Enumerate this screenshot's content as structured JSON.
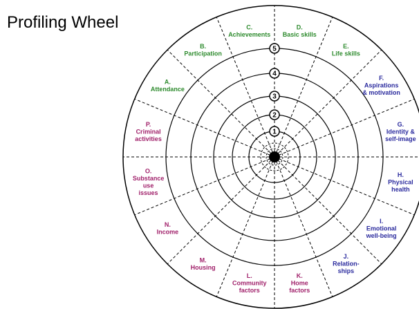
{
  "title": "Profiling Wheel",
  "rings": [
    "1",
    "2",
    "3",
    "4",
    "5"
  ],
  "segments": [
    {
      "letter": "A.",
      "lines": [
        "Attendance"
      ],
      "color": "#2e8b2e"
    },
    {
      "letter": "B.",
      "lines": [
        "Participation"
      ],
      "color": "#2e8b2e"
    },
    {
      "letter": "C.",
      "lines": [
        "Achievements"
      ],
      "color": "#2e8b2e"
    },
    {
      "letter": "D.",
      "lines": [
        "Basic skills"
      ],
      "color": "#2e8b2e"
    },
    {
      "letter": "E.",
      "lines": [
        "Life skills"
      ],
      "color": "#2e8b2e"
    },
    {
      "letter": "F.",
      "lines": [
        "Aspirations",
        "& motivation"
      ],
      "color": "#2b2b9e"
    },
    {
      "letter": "G.",
      "lines": [
        "Identity &",
        "self-image"
      ],
      "color": "#2b2b9e"
    },
    {
      "letter": "H.",
      "lines": [
        "Physical",
        "health"
      ],
      "color": "#2b2b9e"
    },
    {
      "letter": "I.",
      "lines": [
        "Emotional",
        "well-being"
      ],
      "color": "#2b2b9e"
    },
    {
      "letter": "J.",
      "lines": [
        "Relation-",
        "ships"
      ],
      "color": "#2b2b9e"
    },
    {
      "letter": "K.",
      "lines": [
        "Home",
        "factors"
      ],
      "color": "#a0206a"
    },
    {
      "letter": "L.",
      "lines": [
        "Community",
        "factors"
      ],
      "color": "#a0206a"
    },
    {
      "letter": "M.",
      "lines": [
        "Housing"
      ],
      "color": "#a0206a"
    },
    {
      "letter": "N.",
      "lines": [
        "Income"
      ],
      "color": "#a0206a"
    },
    {
      "letter": "O.",
      "lines": [
        "Substance",
        "use",
        "issues"
      ],
      "color": "#a0206a"
    },
    {
      "letter": "P.",
      "lines": [
        "Criminal",
        "activities"
      ],
      "color": "#a0206a"
    }
  ]
}
